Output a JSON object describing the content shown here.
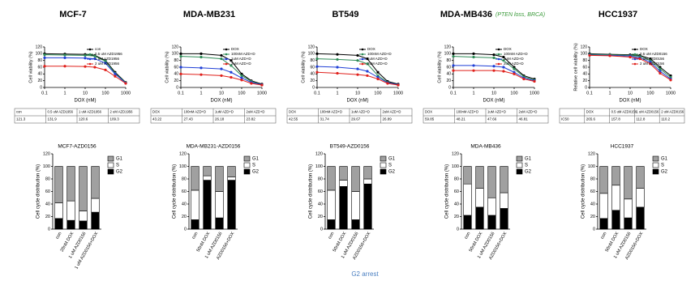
{
  "chart_data": [
    {
      "type": "line",
      "title": "MCF-7",
      "xlabel": "DOX (nM)",
      "ylabel": "Cell viability (%)",
      "xscale": "log",
      "x": [
        0.1,
        1,
        10,
        30,
        100,
        300,
        1000
      ],
      "xlim": [
        0.1,
        1000
      ],
      "xticks": [
        0.1,
        1,
        10,
        100,
        1000
      ],
      "ylim": [
        0,
        120
      ],
      "yticks": [
        0,
        20,
        40,
        60,
        80,
        100,
        120
      ],
      "series": [
        {
          "name": "con",
          "color": "#000000",
          "values": [
            100,
            99,
            98,
            95,
            80,
            45,
            15
          ]
        },
        {
          "name": "0.5 uM AZD1956",
          "color": "#2e8b57",
          "values": [
            97,
            96,
            95,
            93,
            78,
            42,
            14
          ]
        },
        {
          "name": "1 uM AZD1956",
          "color": "#1f3fd6",
          "values": [
            88,
            88,
            87,
            85,
            72,
            40,
            13
          ]
        },
        {
          "name": "2 uM AZD1956",
          "color": "#e0201b",
          "values": [
            63,
            63,
            62,
            60,
            52,
            33,
            12
          ]
        }
      ]
    },
    {
      "type": "line",
      "title": "MDA-MB231",
      "xlabel": "DOX (nM)",
      "ylabel": "Cell viability (%)",
      "xscale": "log",
      "x": [
        0.1,
        1,
        10,
        30,
        100,
        300,
        1000
      ],
      "xlim": [
        0.1,
        1000
      ],
      "xticks": [
        0.1,
        1,
        10,
        100,
        1000
      ],
      "ylim": [
        0,
        120
      ],
      "yticks": [
        0,
        20,
        40,
        60,
        80,
        100,
        120
      ],
      "series": [
        {
          "name": "DOX",
          "color": "#000000",
          "values": [
            100,
            100,
            95,
            80,
            40,
            20,
            10
          ]
        },
        {
          "name": "100nM AZD+D",
          "color": "#2e8b57",
          "values": [
            92,
            90,
            85,
            65,
            35,
            18,
            8
          ]
        },
        {
          "name": "1uM AZD+D",
          "color": "#1f3fd6",
          "values": [
            60,
            58,
            55,
            45,
            28,
            15,
            8
          ]
        },
        {
          "name": "2uM AZD+D",
          "color": "#e0201b",
          "values": [
            40,
            38,
            35,
            30,
            22,
            12,
            7
          ]
        }
      ]
    },
    {
      "type": "line",
      "title": "BT549",
      "xlabel": "DOX (nM)",
      "ylabel": "Cell viability (%)",
      "xscale": "log",
      "x": [
        0.1,
        1,
        10,
        30,
        100,
        300,
        1000
      ],
      "xlim": [
        0.1,
        1000
      ],
      "xticks": [
        0.1,
        1,
        10,
        100,
        1000
      ],
      "ylim": [
        0,
        120
      ],
      "yticks": [
        0,
        20,
        40,
        60,
        80,
        100,
        120
      ],
      "series": [
        {
          "name": "DOX",
          "color": "#000000",
          "values": [
            100,
            98,
            95,
            85,
            45,
            18,
            10
          ]
        },
        {
          "name": "100nM AZD+D",
          "color": "#2e8b57",
          "values": [
            85,
            83,
            80,
            70,
            35,
            15,
            8
          ]
        },
        {
          "name": "1uM AZD+D",
          "color": "#1f3fd6",
          "values": [
            62,
            60,
            55,
            48,
            30,
            14,
            8
          ]
        },
        {
          "name": "2uM AZD+D",
          "color": "#e0201b",
          "values": [
            45,
            42,
            38,
            35,
            25,
            12,
            7
          ]
        }
      ]
    },
    {
      "type": "line",
      "title": "MDA-MB436",
      "subtitle": "(PTEN loss, BRCA)",
      "xlabel": "DOX (nM)",
      "ylabel": "Cell viability (%)",
      "xscale": "log",
      "x": [
        0.1,
        1,
        10,
        30,
        100,
        300,
        1000
      ],
      "xlim": [
        0.1,
        1000
      ],
      "xticks": [
        0.1,
        1,
        10,
        100,
        1000
      ],
      "ylim": [
        0,
        120
      ],
      "yticks": [
        0,
        20,
        40,
        60,
        80,
        100,
        120
      ],
      "series": [
        {
          "name": "DOX",
          "color": "#000000",
          "values": [
            100,
            100,
            97,
            90,
            60,
            35,
            25
          ]
        },
        {
          "name": "100nM AZD+D",
          "color": "#2e8b57",
          "values": [
            92,
            90,
            88,
            80,
            55,
            32,
            22
          ]
        },
        {
          "name": "1uM AZD+D",
          "color": "#1f3fd6",
          "values": [
            65,
            65,
            63,
            60,
            45,
            28,
            20
          ]
        },
        {
          "name": "2uM AZD+D",
          "color": "#e0201b",
          "values": [
            50,
            50,
            50,
            48,
            40,
            25,
            18
          ]
        }
      ]
    },
    {
      "type": "line",
      "title": "HCC1937",
      "xlabel": "DOX (nM)",
      "ylabel": "Relative cell viability (%)",
      "xscale": "log",
      "x": [
        0.1,
        1,
        10,
        30,
        100,
        300,
        1000
      ],
      "xlim": [
        0.1,
        1000
      ],
      "xticks": [
        0.1,
        1,
        10,
        100,
        1000
      ],
      "ylim": [
        0,
        120
      ],
      "yticks": [
        0,
        20,
        40,
        60,
        80,
        100,
        120
      ],
      "series": [
        {
          "name": "DOX",
          "color": "#000000",
          "values": [
            100,
            98,
            97,
            95,
            85,
            60,
            35
          ]
        },
        {
          "name": "0.5 uM AZD0156",
          "color": "#2e8b57",
          "values": [
            98,
            97,
            95,
            92,
            80,
            55,
            30
          ]
        },
        {
          "name": "1 uM AZD0156",
          "color": "#1f3fd6",
          "values": [
            96,
            95,
            93,
            88,
            75,
            48,
            25
          ]
        },
        {
          "name": "2 uM AZD0156",
          "color": "#e0201b",
          "values": [
            95,
            94,
            90,
            85,
            70,
            42,
            22
          ]
        }
      ]
    },
    {
      "type": "stacked_bar",
      "title": "MCF7-AZD0156",
      "ylabel": "Cell cycle distribution (%)",
      "categories": [
        "con",
        "20nM DOX",
        "1 uM AZD0156",
        "1 uM AZD0156+DOX"
      ],
      "ylim": [
        0,
        120
      ],
      "yticks": [
        0,
        20,
        40,
        60,
        80,
        100,
        120
      ],
      "series": [
        {
          "name": "G1",
          "color": "#a0a0a0",
          "values": [
            58,
            55,
            71,
            51
          ]
        },
        {
          "name": "S",
          "color": "#ffffff",
          "values": [
            25,
            31,
            16,
            22
          ]
        },
        {
          "name": "G2",
          "color": "#000000",
          "values": [
            17,
            14,
            13,
            27
          ]
        }
      ]
    },
    {
      "type": "stacked_bar",
      "title": "MDA-MB231-AZD0156",
      "ylabel": "Cell cycle distribution (%)",
      "categories": [
        "con",
        "50nM DOX",
        "1 uM AZD0156",
        "AZD0156+DOX"
      ],
      "ylim": [
        0,
        120
      ],
      "yticks": [
        0,
        20,
        40,
        60,
        80,
        100,
        120
      ],
      "series": [
        {
          "name": "G1",
          "color": "#a0a0a0",
          "values": [
            38,
            15,
            40,
            17
          ]
        },
        {
          "name": "S",
          "color": "#ffffff",
          "values": [
            47,
            7,
            42,
            5
          ]
        },
        {
          "name": "G2",
          "color": "#000000",
          "values": [
            15,
            78,
            18,
            78
          ]
        }
      ]
    },
    {
      "type": "stacked_bar",
      "title": "BT549-AZD0156",
      "ylabel": "Cell cycle distribution (%)",
      "categories": [
        "con",
        "50nM DOX",
        "1 uM AZD0156",
        "AZD0156+DOX"
      ],
      "ylim": [
        0,
        120
      ],
      "yticks": [
        0,
        20,
        40,
        60,
        80,
        100,
        120
      ],
      "series": [
        {
          "name": "G1",
          "color": "#a0a0a0",
          "values": [
            38,
            22,
            40,
            20
          ]
        },
        {
          "name": "S",
          "color": "#ffffff",
          "values": [
            47,
            10,
            45,
            8
          ]
        },
        {
          "name": "G2",
          "color": "#000000",
          "values": [
            15,
            68,
            15,
            72
          ]
        }
      ]
    },
    {
      "type": "stacked_bar",
      "title": "MDA-MB436",
      "ylabel": "Cell cycle distribution (%)",
      "categories": [
        "con",
        "50nM DOX",
        "1 uM AZD0156",
        "AZD0156+DOX"
      ],
      "ylim": [
        0,
        120
      ],
      "yticks": [
        0,
        20,
        40,
        60,
        80,
        100,
        120
      ],
      "series": [
        {
          "name": "G1",
          "color": "#a0a0a0",
          "values": [
            28,
            35,
            50,
            42
          ]
        },
        {
          "name": "S",
          "color": "#ffffff",
          "values": [
            50,
            30,
            28,
            25
          ]
        },
        {
          "name": "G2",
          "color": "#000000",
          "values": [
            22,
            35,
            22,
            33
          ]
        }
      ]
    },
    {
      "type": "stacked_bar",
      "title": "HCC1937",
      "ylabel": "Cell cycle distribution (%)",
      "categories": [
        "con",
        "50nM DOX",
        "1 uM AZD0156",
        "AZD0156+DOX"
      ],
      "ylim": [
        0,
        120
      ],
      "yticks": [
        0,
        20,
        40,
        60,
        80,
        100,
        120
      ],
      "series": [
        {
          "name": "G1",
          "color": "#a0a0a0",
          "values": [
            43,
            30,
            52,
            35
          ]
        },
        {
          "name": "S",
          "color": "#ffffff",
          "values": [
            40,
            40,
            30,
            30
          ]
        },
        {
          "name": "G2",
          "color": "#000000",
          "values": [
            17,
            30,
            18,
            35
          ]
        }
      ]
    }
  ],
  "tables": [
    {
      "columns": [
        "con",
        "0.5 uM AZD1956",
        "1 uM AZD1956",
        "2 uM AZD1956"
      ],
      "values": [
        121.3,
        131.9,
        120.6,
        109.3
      ]
    },
    {
      "columns": [
        "DOX",
        "100nM AZD+D",
        "1uM AZD+D",
        "2uM AZD+D"
      ],
      "values": [
        43.22,
        27.43,
        26.18,
        23.82
      ]
    },
    {
      "columns": [
        "DOX",
        "100nM AZD+D",
        "1uM AZD+D",
        "2uM AZD+D"
      ],
      "values": [
        42.55,
        31.74,
        29.67,
        26.89
      ]
    },
    {
      "columns": [
        "DOX",
        "100nM AZD+D",
        "1uM AZD+D",
        "2uM AZD+D"
      ],
      "values": [
        59.85,
        48.21,
        47.66,
        46.81
      ]
    },
    {
      "row_label": "IC50",
      "columns": [
        "DOX",
        "0.5 uM AZD0156",
        "1 uM AZD0156",
        "2 uM AZD0156"
      ],
      "values": [
        265.6,
        157.8,
        112.8,
        110.2
      ]
    }
  ],
  "footer": "G2 arrest"
}
